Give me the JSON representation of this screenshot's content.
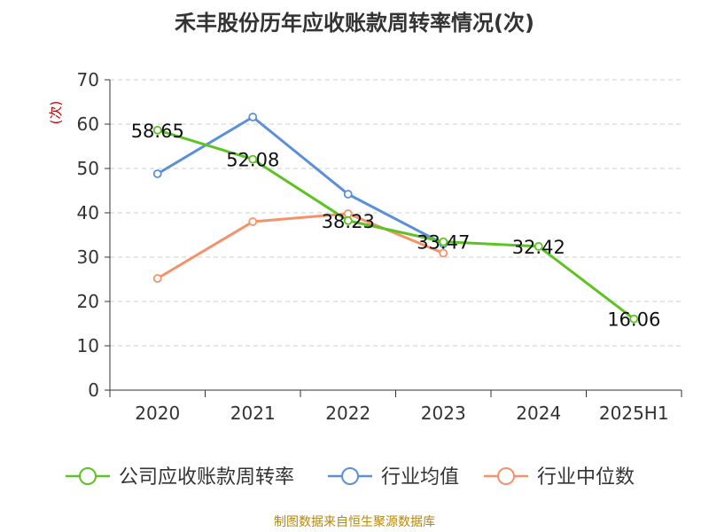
{
  "title": "禾丰股份历年应收账款周转率情况(次)",
  "source": "制图数据来自恒生聚源数据库",
  "chart_data": {
    "type": "line",
    "ylabel": "(次)",
    "xlabel": "",
    "ylim": [
      0,
      70
    ],
    "yticks": [
      0,
      10,
      20,
      30,
      40,
      50,
      60,
      70
    ],
    "categories": [
      "2020",
      "2021",
      "2022",
      "2023",
      "2024",
      "2025H1"
    ],
    "grid": true,
    "legend_position": "bottom",
    "series": [
      {
        "name": "公司应收账款周转率",
        "color": "#5cc322",
        "values": [
          58.65,
          52.08,
          38.23,
          33.47,
          32.42,
          16.06
        ],
        "labels": [
          "58.65",
          "52.08",
          "38.23",
          "33.47",
          "32.42",
          "16.06"
        ]
      },
      {
        "name": "行业均值",
        "color": "#5b8fd9",
        "values": [
          48.8,
          61.6,
          44.2,
          33.0,
          null,
          null
        ]
      },
      {
        "name": "行业中位数",
        "color": "#f5926a",
        "values": [
          25.2,
          38.0,
          39.8,
          30.9,
          null,
          null
        ]
      }
    ]
  }
}
